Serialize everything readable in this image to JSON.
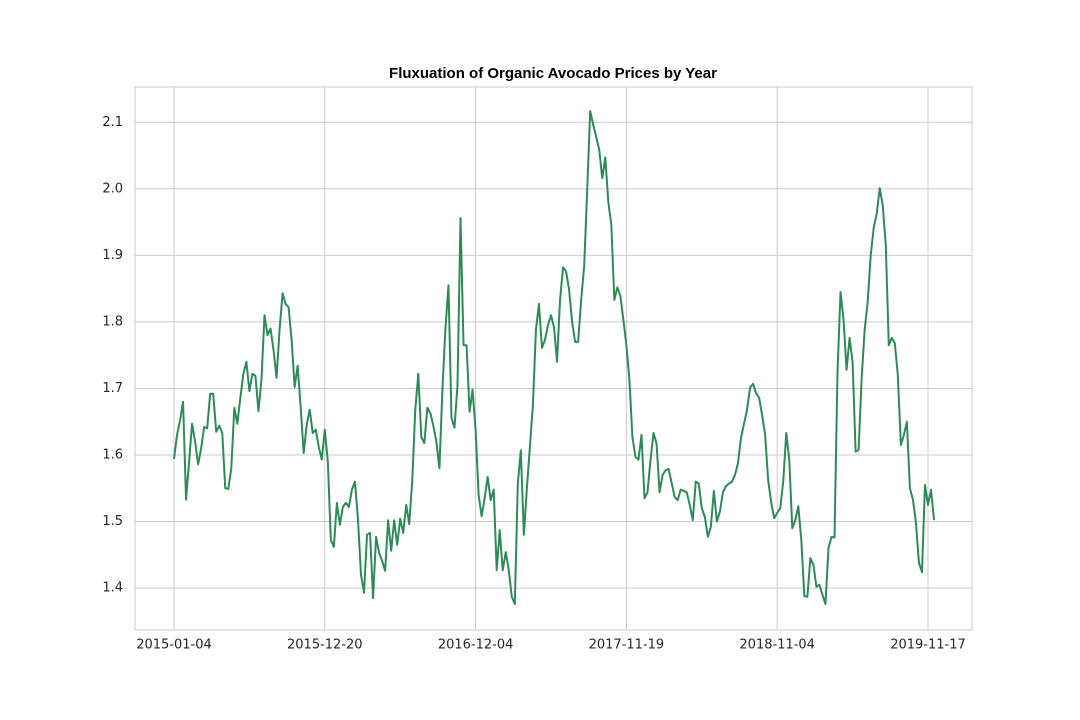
{
  "chart_data": {
    "type": "line",
    "title": "Fluxuation of Organic Avocado Prices by Year",
    "categories": [
      "2015-01-04",
      null,
      null,
      null,
      null,
      null,
      null,
      null,
      null,
      null,
      null,
      null,
      null,
      null,
      null,
      null,
      null,
      null,
      null,
      null,
      null,
      null,
      null,
      null,
      null,
      null,
      null,
      null,
      null,
      null,
      null,
      null,
      null,
      null,
      null,
      null,
      null,
      null,
      null,
      null,
      null,
      null,
      null,
      null,
      null,
      null,
      null,
      null,
      null,
      null,
      "2015-12-20",
      null,
      null,
      null,
      null,
      null,
      null,
      null,
      null,
      null,
      null,
      null,
      null,
      null,
      null,
      null,
      null,
      null,
      null,
      null,
      null,
      null,
      null,
      null,
      null,
      null,
      null,
      null,
      null,
      null,
      null,
      null,
      null,
      null,
      null,
      null,
      null,
      null,
      null,
      null,
      null,
      null,
      null,
      null,
      null,
      null,
      null,
      null,
      null,
      null,
      "2016-12-04",
      null,
      null,
      null,
      null,
      null,
      null,
      null,
      null,
      null,
      null,
      null,
      null,
      null,
      null,
      null,
      null,
      null,
      null,
      null,
      null,
      null,
      null,
      null,
      null,
      null,
      null,
      null,
      null,
      null,
      null,
      null,
      null,
      null,
      null,
      null,
      null,
      null,
      null,
      null,
      null,
      null,
      null,
      null,
      null,
      null,
      null,
      null,
      null,
      null,
      "2017-11-19",
      null,
      null,
      null,
      null,
      null,
      null,
      null,
      null,
      null,
      null,
      null,
      null,
      null,
      null,
      null,
      null,
      null,
      null,
      null,
      null,
      null,
      null,
      null,
      null,
      null,
      null,
      null,
      null,
      null,
      null,
      null,
      null,
      null,
      null,
      null,
      null,
      null,
      null,
      null,
      null,
      null,
      null,
      null,
      null,
      null,
      null,
      null,
      null,
      null,
      "2018-11-04",
      null,
      null,
      null,
      null,
      null,
      null,
      null,
      null,
      null,
      null,
      null,
      null,
      null,
      null,
      null,
      null,
      null,
      null,
      null,
      null,
      null,
      null,
      null,
      null,
      null,
      null,
      null,
      null,
      null,
      null,
      null,
      null,
      null,
      null,
      null,
      null,
      null,
      null,
      null,
      null,
      null,
      null,
      null,
      null,
      null,
      null,
      null,
      null,
      null,
      "2019-11-17",
      null,
      null
    ],
    "series": [
      {
        "color": "#2e8b57",
        "values": [
          1.594,
          1.63,
          1.652,
          1.68,
          1.533,
          1.59,
          1.647,
          1.62,
          1.586,
          1.61,
          1.642,
          1.64,
          1.692,
          1.692,
          1.635,
          1.644,
          1.633,
          1.55,
          1.549,
          1.58,
          1.671,
          1.647,
          1.686,
          1.722,
          1.74,
          1.696,
          1.722,
          1.719,
          1.666,
          1.713,
          1.81,
          1.78,
          1.79,
          1.758,
          1.716,
          1.788,
          1.843,
          1.827,
          1.822,
          1.773,
          1.702,
          1.734,
          1.672,
          1.603,
          1.645,
          1.668,
          1.633,
          1.638,
          1.612,
          1.593,
          1.638,
          1.59,
          1.472,
          1.462,
          1.528,
          1.495,
          1.522,
          1.528,
          1.522,
          1.548,
          1.56,
          1.503,
          1.42,
          1.393,
          1.48,
          1.483,
          1.385,
          1.477,
          1.453,
          1.441,
          1.426,
          1.502,
          1.456,
          1.502,
          1.465,
          1.504,
          1.483,
          1.525,
          1.496,
          1.562,
          1.668,
          1.722,
          1.627,
          1.618,
          1.671,
          1.663,
          1.644,
          1.62,
          1.58,
          1.698,
          1.79,
          1.855,
          1.656,
          1.641,
          1.705,
          1.956,
          1.765,
          1.765,
          1.665,
          1.698,
          1.638,
          1.54,
          1.508,
          1.535,
          1.567,
          1.532,
          1.548,
          1.427,
          1.487,
          1.427,
          1.454,
          1.427,
          1.387,
          1.376,
          1.557,
          1.607,
          1.48,
          1.55,
          1.612,
          1.675,
          1.788,
          1.827,
          1.761,
          1.773,
          1.795,
          1.81,
          1.792,
          1.74,
          1.833,
          1.882,
          1.876,
          1.848,
          1.8,
          1.77,
          1.77,
          1.833,
          1.884,
          1.998,
          2.117,
          2.096,
          2.078,
          2.058,
          2.016,
          2.047,
          1.98,
          1.946,
          1.833,
          1.852,
          1.839,
          1.803,
          1.765,
          1.713,
          1.627,
          1.597,
          1.593,
          1.63,
          1.535,
          1.544,
          1.593,
          1.633,
          1.617,
          1.544,
          1.57,
          1.577,
          1.579,
          1.558,
          1.537,
          1.532,
          1.548,
          1.546,
          1.544,
          1.525,
          1.502,
          1.56,
          1.557,
          1.52,
          1.507,
          1.477,
          1.492,
          1.546,
          1.5,
          1.515,
          1.544,
          1.553,
          1.557,
          1.56,
          1.57,
          1.588,
          1.626,
          1.647,
          1.668,
          1.701,
          1.707,
          1.693,
          1.686,
          1.66,
          1.63,
          1.562,
          1.529,
          1.505,
          1.513,
          1.52,
          1.56,
          1.633,
          1.593,
          1.49,
          1.502,
          1.523,
          1.472,
          1.388,
          1.387,
          1.445,
          1.435,
          1.402,
          1.405,
          1.39,
          1.376,
          1.46,
          1.477,
          1.476,
          1.726,
          1.845,
          1.803,
          1.728,
          1.776,
          1.74,
          1.605,
          1.608,
          1.716,
          1.788,
          1.83,
          1.9,
          1.941,
          1.963,
          2.001,
          1.975,
          1.915,
          1.765,
          1.776,
          1.768,
          1.72,
          1.615,
          1.63,
          1.65,
          1.55,
          1.533,
          1.498,
          1.438,
          1.424,
          1.555,
          1.525,
          1.548,
          1.502
        ]
      }
    ],
    "ylim": [
      1.337,
      2.153
    ],
    "yticks": [
      1.4,
      1.5,
      1.6,
      1.7,
      1.8,
      1.9,
      {
        "value": 2,
        "label": "2.0"
      },
      2.1
    ],
    "grid": true
  }
}
